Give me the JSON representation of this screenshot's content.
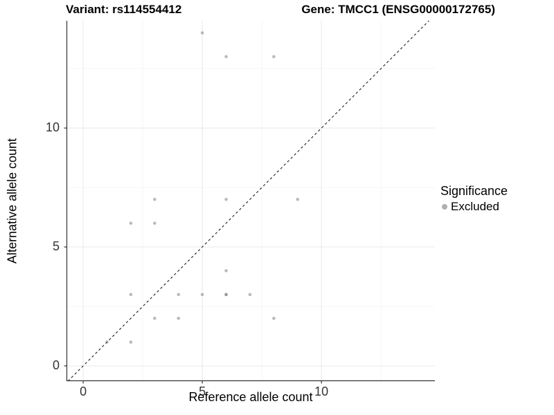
{
  "chart_data": {
    "type": "scatter",
    "title_left": "Variant: rs114554412",
    "title_right": "Gene: TMCC1 (ENSG00000172765)",
    "xlabel": "Reference allele count",
    "ylabel": "Alternative allele count",
    "xlim": [
      -0.7,
      14.76
    ],
    "ylim": [
      -0.64,
      14.51
    ],
    "x_major_ticks": [
      0,
      5,
      10
    ],
    "y_major_ticks": [
      0,
      5,
      10
    ],
    "x_minor_ticks": [
      2.5,
      7.5,
      12.5
    ],
    "y_minor_ticks": [
      2.5,
      7.5,
      12.5
    ],
    "grid": "on",
    "identity_line": {
      "style": "dashed",
      "from": -0.64,
      "to": 14.51,
      "color": "#1a1a1a"
    },
    "series": [
      {
        "name": "Excluded",
        "point_color": "#757575",
        "point_opacity": 0.5,
        "points": [
          [
            1,
            1
          ],
          [
            2,
            1
          ],
          [
            2,
            3
          ],
          [
            2,
            6
          ],
          [
            3,
            2
          ],
          [
            3,
            6
          ],
          [
            3,
            7
          ],
          [
            4,
            2
          ],
          [
            4,
            3
          ],
          [
            5,
            3
          ],
          [
            5,
            14
          ],
          [
            6,
            3
          ],
          [
            6,
            3
          ],
          [
            6,
            4
          ],
          [
            6,
            7
          ],
          [
            6,
            13
          ],
          [
            7,
            3
          ],
          [
            8,
            2
          ],
          [
            8,
            13
          ],
          [
            9,
            7
          ]
        ]
      }
    ],
    "legend": {
      "title": "Significance",
      "position": "right",
      "items": [
        {
          "label": "Excluded",
          "color": "#b0b0b0"
        }
      ]
    },
    "colors": {
      "background": "#ffffff",
      "grid_major": "#e8e8e8",
      "grid_minor": "#f5f5f5",
      "axis_line": "#333333",
      "tick_mark": "#333333"
    }
  }
}
